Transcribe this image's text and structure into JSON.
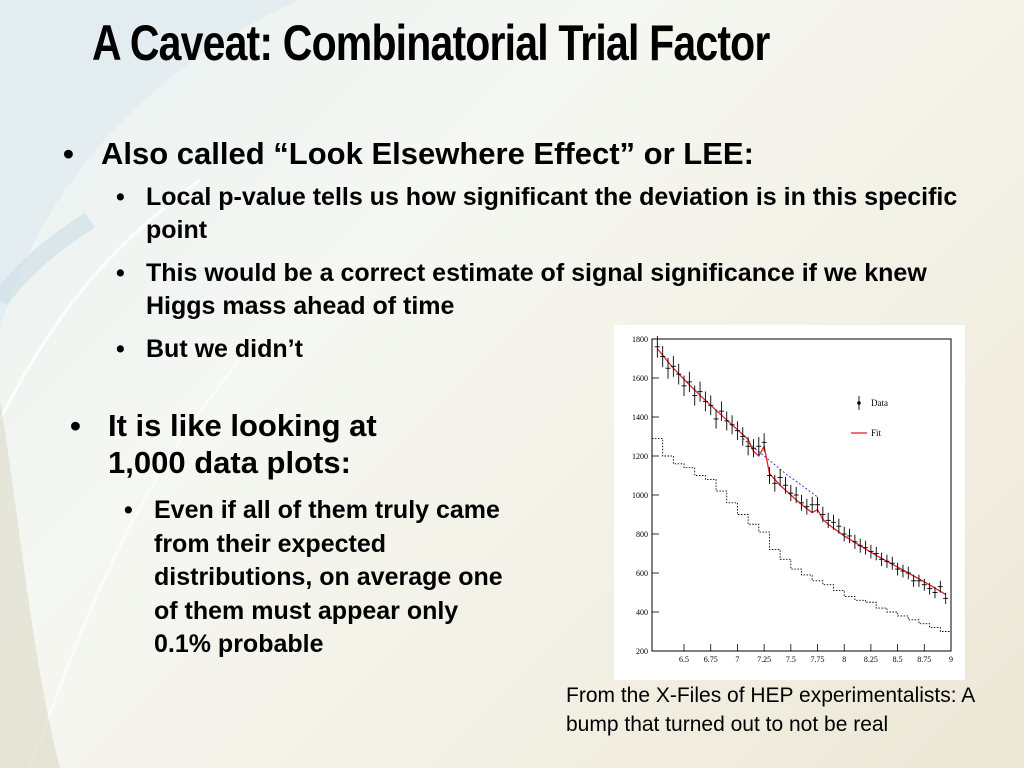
{
  "slide": {
    "title": "A Caveat:  Combinatorial Trial Factor",
    "bullet1": "Also called “Look Elsewhere Effect” or LEE:",
    "sub1": "Local p-value tells us how significant the deviation is in this specific point",
    "sub2": "This would be a correct estimate of signal significance if we knew Higgs mass ahead of time",
    "sub3": "But we didn’t",
    "bullet2": "It is like looking at 1,000 data plots:",
    "sub4": "Even if all of them truly came from their expected distributions, on average one of them must appear only 0.1% probable",
    "caption": "From the X-Files of HEP experimentalists: A bump that turned out to not be real",
    "bullet_glyph": "•"
  },
  "chart_data": {
    "type": "line",
    "xlim": [
      6.2,
      9.0
    ],
    "ylim": [
      200,
      1800
    ],
    "xticks": [
      "6.5",
      "6.75",
      "7",
      "7.25",
      "7.5",
      "7.75",
      "8",
      "8.25",
      "8.5",
      "8.75",
      "9"
    ],
    "xtick_values": [
      6.5,
      6.75,
      7,
      7.25,
      7.5,
      7.75,
      8,
      8.25,
      8.5,
      8.75,
      9
    ],
    "yticks": [
      "200",
      "400",
      "600",
      "800",
      "1000",
      "1200",
      "1400",
      "1600",
      "1800"
    ],
    "ytick_values": [
      200,
      400,
      600,
      800,
      1000,
      1200,
      1400,
      1600,
      1800
    ],
    "legend": [
      {
        "name": "Data",
        "style": "point"
      },
      {
        "name": "Fit",
        "style": "line",
        "color": "#e8202a"
      }
    ],
    "colors": {
      "fit": "#e8202a",
      "background": "#2a2ae0",
      "data": "#000000",
      "secondary": "#000000"
    },
    "data_x": [
      6.25,
      6.3,
      6.35,
      6.4,
      6.45,
      6.5,
      6.55,
      6.6,
      6.65,
      6.7,
      6.75,
      6.8,
      6.85,
      6.9,
      6.95,
      7.0,
      7.05,
      7.1,
      7.15,
      7.2,
      7.25,
      7.3,
      7.35,
      7.4,
      7.45,
      7.5,
      7.55,
      7.6,
      7.65,
      7.7,
      7.75,
      7.8,
      7.85,
      7.9,
      7.95,
      8.0,
      8.05,
      8.1,
      8.15,
      8.2,
      8.25,
      8.3,
      8.35,
      8.4,
      8.45,
      8.5,
      8.55,
      8.6,
      8.65,
      8.7,
      8.75,
      8.8,
      8.85,
      8.9,
      8.95
    ],
    "data_y": [
      1760,
      1710,
      1650,
      1660,
      1620,
      1560,
      1580,
      1510,
      1530,
      1480,
      1460,
      1390,
      1430,
      1380,
      1360,
      1330,
      1300,
      1250,
      1240,
      1250,
      1270,
      1100,
      1060,
      1090,
      1050,
      1010,
      1000,
      960,
      940,
      950,
      950,
      900,
      870,
      860,
      840,
      800,
      790,
      760,
      740,
      730,
      710,
      700,
      670,
      660,
      650,
      620,
      610,
      600,
      560,
      560,
      540,
      520,
      500,
      530,
      470
    ],
    "fit_x": [
      6.25,
      6.4,
      6.55,
      6.7,
      6.85,
      7.0,
      7.1,
      7.15,
      7.2,
      7.25,
      7.3,
      7.4,
      7.55,
      7.65,
      7.7,
      7.75,
      7.8,
      7.85,
      8.0,
      8.15,
      8.3,
      8.45,
      8.6,
      8.75,
      8.95
    ],
    "fit_y": [
      1750,
      1650,
      1565,
      1485,
      1410,
      1335,
      1285,
      1225,
      1200,
      1250,
      1110,
      1050,
      975,
      930,
      910,
      925,
      875,
      850,
      790,
      740,
      690,
      645,
      600,
      555,
      490
    ],
    "bg_x": [
      7.05,
      7.15,
      7.25,
      7.35,
      7.45,
      7.55,
      7.65,
      7.75
    ],
    "bg_y": [
      1290,
      1245,
      1200,
      1155,
      1110,
      1070,
      1030,
      990
    ],
    "mc_x": [
      6.25,
      6.35,
      6.45,
      6.55,
      6.65,
      6.75,
      6.85,
      6.95,
      7.05,
      7.15,
      7.25,
      7.35,
      7.45,
      7.55,
      7.65,
      7.75,
      7.85,
      7.95,
      8.05,
      8.15,
      8.25,
      8.35,
      8.45,
      8.55,
      8.65,
      8.75,
      8.85,
      8.95
    ],
    "mc_y": [
      1290,
      1200,
      1160,
      1140,
      1100,
      1080,
      1020,
      960,
      900,
      850,
      810,
      720,
      670,
      620,
      590,
      560,
      540,
      510,
      480,
      460,
      450,
      420,
      400,
      380,
      360,
      340,
      320,
      300
    ]
  }
}
